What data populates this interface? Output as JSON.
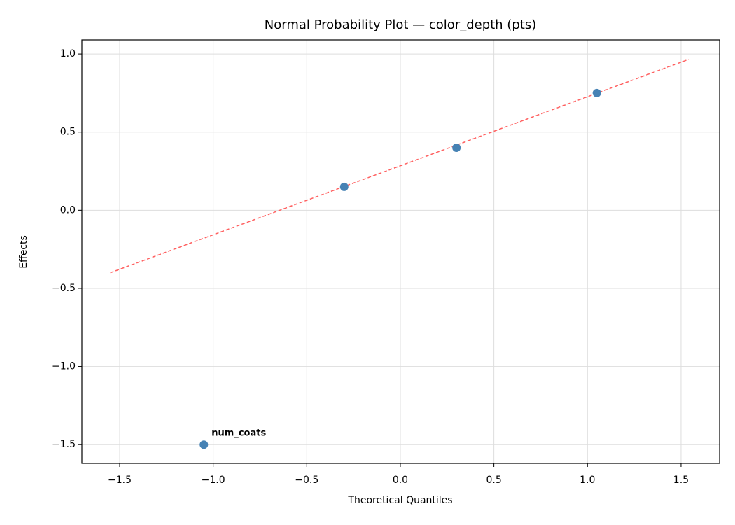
{
  "chart_data": {
    "type": "scatter",
    "title": "Normal Probability Plot — color_depth (pts)",
    "xlabel": "Theoretical Quantiles",
    "ylabel": "Effects",
    "x": [
      -1.05,
      -0.3,
      0.3,
      1.05
    ],
    "values": [
      -1.5,
      0.15,
      0.4,
      0.75
    ],
    "color": "#4682b4",
    "reference_line": {
      "x": [
        -1.55,
        1.54
      ],
      "y": [
        -0.4,
        0.965
      ],
      "color": "#ff6060",
      "dashed": true
    },
    "annotations": [
      {
        "text": "num_coats",
        "point": 0,
        "color": "#ff0000"
      }
    ],
    "xlim": [
      -1.702,
      1.706
    ],
    "ylim": [
      -1.62,
      1.09
    ],
    "xticks": [
      {
        "value": -1.5,
        "label": "−1.5"
      },
      {
        "value": -1.0,
        "label": "−1.0"
      },
      {
        "value": -0.5,
        "label": "−0.5"
      },
      {
        "value": 0,
        "label": "0.0"
      },
      0.5,
      {
        "value": 1.0,
        "label": "1.0"
      },
      1.5
    ],
    "yticks": [
      {
        "value": -1.5,
        "label": "−1.5"
      },
      {
        "value": -1.0,
        "label": "−1.0"
      },
      {
        "value": -0.5,
        "label": "−0.5"
      },
      {
        "value": 0,
        "label": "0.0"
      },
      0.5,
      {
        "value": 1.0,
        "label": "1.0"
      }
    ],
    "grid": true
  }
}
